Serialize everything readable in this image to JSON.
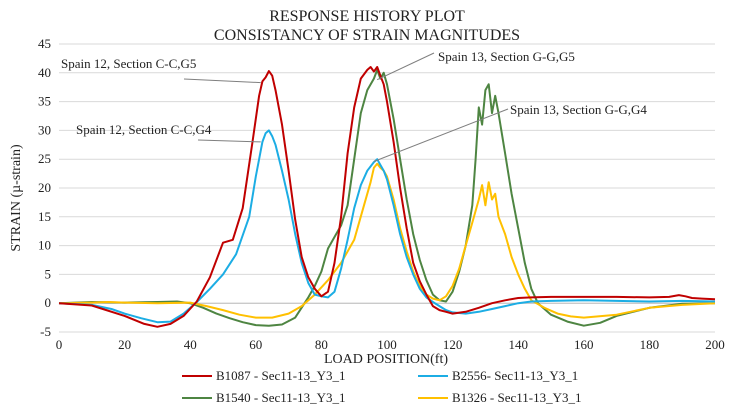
{
  "chart_data": {
    "type": "line",
    "title": "RESPONSE HISTORY PLOT",
    "subtitle": "CONSISTANCY OF STRAIN MAGNITUDES",
    "xlabel": "LOAD POSITION(ft)",
    "ylabel": "STRAIN (µ-strain)",
    "xlim": [
      0,
      200
    ],
    "ylim": [
      -5,
      45
    ],
    "xticks": [
      0,
      20,
      40,
      60,
      80,
      100,
      120,
      140,
      160,
      180,
      200
    ],
    "yticks": [
      -5,
      0,
      5,
      10,
      15,
      20,
      25,
      30,
      35,
      40,
      45
    ],
    "grid": "horizontal",
    "legend_position": "bottom",
    "colors": {
      "B1087": "#c00000",
      "B2556": "#1cade4",
      "B1540": "#4e8542",
      "B1326": "#ffc000"
    },
    "series": [
      {
        "key": "B1087",
        "name": "B1087 - Sec11-13_Y3_1",
        "color": "#c00000",
        "x": [
          0,
          10,
          20,
          26,
          30,
          34,
          38,
          42,
          46,
          50,
          53,
          56,
          59,
          61,
          62,
          63,
          64,
          65,
          66,
          68,
          70,
          72,
          74,
          76,
          78,
          80,
          82,
          84,
          86,
          88,
          90,
          92,
          94,
          95,
          96,
          97,
          98,
          99,
          100,
          102,
          104,
          106,
          108,
          110,
          112,
          114,
          116,
          118,
          120,
          124,
          128,
          132,
          136,
          140,
          144,
          150,
          160,
          170,
          180,
          186,
          189,
          191,
          193,
          196,
          200
        ],
        "y": [
          0,
          -0.4,
          -2.2,
          -3.6,
          -4.1,
          -3.6,
          -2.2,
          0.3,
          4.5,
          10.5,
          11,
          16.5,
          28,
          36,
          38.5,
          39.2,
          40.3,
          39.5,
          37,
          31,
          23,
          14.5,
          8,
          4.5,
          2.5,
          1.2,
          2,
          7,
          15,
          26,
          34,
          39,
          40.5,
          41,
          40.2,
          41,
          39.5,
          38,
          35,
          28,
          20,
          13,
          7,
          3.8,
          1.5,
          -0.5,
          -1.2,
          -1.5,
          -1.8,
          -1.5,
          -0.8,
          0,
          0.5,
          0.9,
          1,
          1.1,
          1.1,
          1.1,
          1,
          1.1,
          1.4,
          1.2,
          0.9,
          0.8,
          0.7
        ]
      },
      {
        "key": "B2556",
        "name": "B2556- Sec11-13_Y3_1",
        "color": "#1cade4",
        "x": [
          0,
          10,
          16,
          20,
          25,
          30,
          34,
          38,
          42,
          46,
          50,
          54,
          58,
          60,
          62,
          63,
          64,
          65,
          66,
          68,
          70,
          72,
          74,
          76,
          78,
          80,
          82,
          84,
          86,
          88,
          90,
          92,
          94,
          96,
          97,
          98,
          99,
          100,
          102,
          104,
          106,
          108,
          110,
          112,
          114,
          116,
          118,
          120,
          124,
          128,
          132,
          136,
          140,
          144,
          150,
          160,
          170,
          180,
          190,
          200
        ],
        "y": [
          0,
          -0.3,
          -1,
          -1.8,
          -2.6,
          -3.3,
          -3.2,
          -1.8,
          0.2,
          2.5,
          5,
          8.5,
          15,
          22,
          28,
          29.5,
          30,
          29,
          27.5,
          23,
          18,
          12,
          7,
          3.5,
          1.5,
          1.2,
          1,
          2,
          6,
          11,
          16.5,
          20.5,
          23,
          24.5,
          25,
          24,
          23,
          21.5,
          17,
          12,
          8,
          5,
          2.5,
          1,
          0.2,
          -0.5,
          -1.2,
          -1.6,
          -1.8,
          -1.5,
          -1,
          -0.5,
          0,
          0.3,
          0.4,
          0.5,
          0.4,
          0.3,
          0.4,
          0.3
        ]
      },
      {
        "key": "B1540",
        "name": "B1540  - Sec11-13_Y3_1",
        "color": "#4e8542",
        "x": [
          0,
          10,
          20,
          30,
          36,
          40,
          44,
          48,
          52,
          56,
          60,
          64,
          68,
          72,
          76,
          78,
          80,
          82,
          84,
          86,
          88,
          90,
          92,
          94,
          96,
          97,
          98,
          99,
          100,
          102,
          104,
          106,
          108,
          110,
          112,
          114,
          116,
          118,
          120,
          122,
          124,
          126,
          127,
          128,
          129,
          130,
          131,
          132,
          133,
          134,
          136,
          138,
          140,
          142,
          144,
          146,
          150,
          155,
          160,
          165,
          170,
          180,
          190,
          200
        ],
        "y": [
          0,
          0.2,
          0.1,
          0.2,
          0.3,
          0,
          -0.8,
          -1.8,
          -2.6,
          -3.3,
          -3.8,
          -3.9,
          -3.7,
          -2.5,
          1,
          3,
          5.5,
          9.5,
          11.5,
          13.5,
          17,
          25,
          33,
          37,
          39,
          40.5,
          39,
          40,
          38,
          32,
          25,
          18,
          12,
          7.5,
          4,
          1.5,
          0.5,
          0.3,
          2,
          5.5,
          10,
          17,
          25,
          34,
          31,
          37,
          38,
          33,
          36,
          33,
          26,
          19,
          13,
          7,
          2.5,
          0,
          -2,
          -3.2,
          -3.9,
          -3.4,
          -2.2,
          -0.8,
          -0.1,
          0
        ]
      },
      {
        "key": "B1326",
        "name": "B1326 - Sec11-13_Y3_1",
        "color": "#ffc000",
        "x": [
          0,
          10,
          15,
          20,
          30,
          40,
          45,
          50,
          55,
          60,
          65,
          70,
          74,
          78,
          82,
          86,
          90,
          93,
          95,
          96,
          97,
          98,
          99,
          100,
          102,
          104,
          106,
          108,
          110,
          112,
          114,
          116,
          118,
          120,
          122,
          124,
          126,
          128,
          129,
          130,
          131,
          132,
          133,
          134,
          136,
          138,
          140,
          142,
          144,
          148,
          152,
          156,
          160,
          170,
          180,
          190,
          200
        ],
        "y": [
          0,
          0.1,
          0.2,
          0.1,
          0,
          0.1,
          -0.5,
          -1.2,
          -2,
          -2.5,
          -2.5,
          -1.8,
          -0.5,
          1.5,
          4,
          7,
          11,
          17,
          21,
          23.5,
          24.2,
          23.5,
          23,
          22,
          18,
          13,
          9,
          5.5,
          3,
          1.5,
          0.8,
          0.5,
          1.2,
          3,
          6,
          10,
          14,
          18,
          20.5,
          17,
          21,
          18,
          19,
          15,
          12,
          8,
          5,
          2.5,
          0.5,
          -0.8,
          -1.8,
          -2.3,
          -2.5,
          -2,
          -0.8,
          -0.3,
          0
        ]
      }
    ],
    "annotations": [
      {
        "text": "Spain 12, Section C-C,G5",
        "series": "B1087",
        "x": 61.5,
        "y": 38.3
      },
      {
        "text": "Spain 12, Section C-C,G4",
        "series": "B2556",
        "x": 61.5,
        "y": 28
      },
      {
        "text": "Spain 13, Section G-G,G5",
        "series": "B1540",
        "x": 97,
        "y": 38.8
      },
      {
        "text": "Spain 13, Section G-G,G4",
        "series": "B1326",
        "x": 96,
        "y": 24.6
      }
    ]
  }
}
